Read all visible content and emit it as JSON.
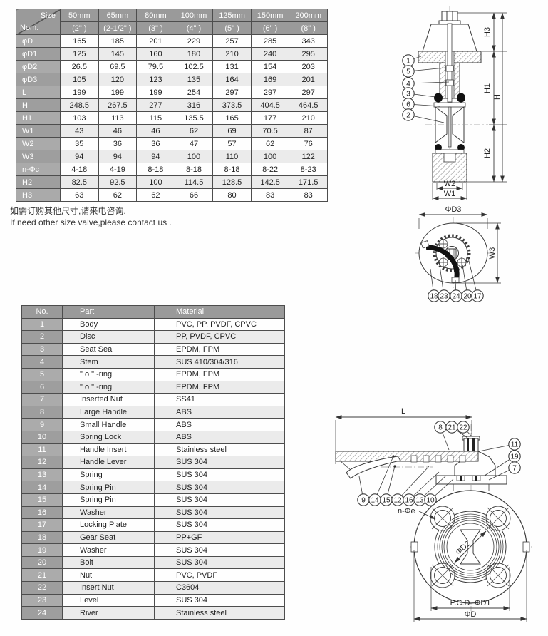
{
  "note": {
    "cn": "如需订购其他尺寸,请来电咨询.",
    "en": "If need other size valve,please contact us ."
  },
  "dim_table": {
    "corner_top": "Size",
    "corner_bottom": "Nom.",
    "columns": [
      {
        "size": "50mm",
        "inch": "(2\" )"
      },
      {
        "size": "65mm",
        "inch": "(2-1/2\" )"
      },
      {
        "size": "80mm",
        "inch": "(3\" )"
      },
      {
        "size": "100mm",
        "inch": "(4\" )"
      },
      {
        "size": "125mm",
        "inch": "(5\" )"
      },
      {
        "size": "150mm",
        "inch": "(6\" )"
      },
      {
        "size": "200mm",
        "inch": "(8\" )"
      }
    ],
    "rows": [
      {
        "label": "φD",
        "values": [
          "165",
          "185",
          "201",
          "229",
          "257",
          "285",
          "343"
        ]
      },
      {
        "label": "φD1",
        "values": [
          "125",
          "145",
          "160",
          "180",
          "210",
          "240",
          "295"
        ]
      },
      {
        "label": "φD2",
        "values": [
          "26.5",
          "69.5",
          "79.5",
          "102.5",
          "131",
          "154",
          "203"
        ]
      },
      {
        "label": "φD3",
        "values": [
          "105",
          "120",
          "123",
          "135",
          "164",
          "169",
          "201"
        ]
      },
      {
        "label": "L",
        "values": [
          "199",
          "199",
          "199",
          "254",
          "297",
          "297",
          "297"
        ]
      },
      {
        "label": "H",
        "values": [
          "248.5",
          "267.5",
          "277",
          "316",
          "373.5",
          "404.5",
          "464.5"
        ]
      },
      {
        "label": "H1",
        "values": [
          "103",
          "113",
          "115",
          "135.5",
          "165",
          "177",
          "210"
        ]
      },
      {
        "label": "W1",
        "values": [
          "43",
          "46",
          "46",
          "62",
          "69",
          "70.5",
          "87"
        ]
      },
      {
        "label": "W2",
        "values": [
          "35",
          "36",
          "36",
          "47",
          "57",
          "62",
          "76"
        ]
      },
      {
        "label": "W3",
        "values": [
          "94",
          "94",
          "94",
          "100",
          "110",
          "100",
          "122"
        ]
      },
      {
        "label": "n-Φc",
        "values": [
          "4-18",
          "4-19",
          "8-18",
          "8-18",
          "8-18",
          "8-22",
          "8-23"
        ]
      },
      {
        "label": "H2",
        "values": [
          "82.5",
          "92.5",
          "100",
          "114.5",
          "128.5",
          "142.5",
          "171.5"
        ]
      },
      {
        "label": "H3",
        "values": [
          "63",
          "62",
          "62",
          "66",
          "80",
          "83",
          "83"
        ]
      }
    ]
  },
  "parts_table": {
    "headers": [
      "No.",
      "Part",
      "Material"
    ],
    "rows": [
      {
        "no": "1",
        "part": "Body",
        "material": "PVC, PP, PVDF, CPVC"
      },
      {
        "no": "2",
        "part": "Disc",
        "material": "PP, PVDF, CPVC"
      },
      {
        "no": "3",
        "part": "Seat Seal",
        "material": "EPDM, FPM"
      },
      {
        "no": "4",
        "part": "Stem",
        "material": "SUS 410/304/316"
      },
      {
        "no": "5",
        "part": "\" o \" -ring",
        "material": "EPDM, FPM"
      },
      {
        "no": "6",
        "part": "\" o \" -ring",
        "material": "EPDM, FPM"
      },
      {
        "no": "7",
        "part": "Inserted Nut",
        "material": "SS41"
      },
      {
        "no": "8",
        "part": "Large Handle",
        "material": "ABS"
      },
      {
        "no": "9",
        "part": "Small Handle",
        "material": "ABS"
      },
      {
        "no": "10",
        "part": "Spring Lock",
        "material": "ABS"
      },
      {
        "no": "11",
        "part": "Handle Insert",
        "material": "Stainless steel"
      },
      {
        "no": "12",
        "part": "Handle Lever",
        "material": "SUS 304"
      },
      {
        "no": "13",
        "part": "Spring",
        "material": "SUS 304"
      },
      {
        "no": "14",
        "part": "Spring Pin",
        "material": "SUS 304"
      },
      {
        "no": "15",
        "part": "Spring Pin",
        "material": "SUS 304"
      },
      {
        "no": "16",
        "part": "Washer",
        "material": "SUS 304"
      },
      {
        "no": "17",
        "part": "Locking Plate",
        "material": "SUS 304"
      },
      {
        "no": "18",
        "part": "Gear Seat",
        "material": "PP+GF"
      },
      {
        "no": "19",
        "part": "Washer",
        "material": "SUS 304"
      },
      {
        "no": "20",
        "part": "Bolt",
        "material": "SUS 304"
      },
      {
        "no": "21",
        "part": "Nut",
        "material": "PVC, PVDF"
      },
      {
        "no": "22",
        "part": "Insert Nut",
        "material": "C3604"
      },
      {
        "no": "23",
        "part": "Level",
        "material": "SUS 304"
      },
      {
        "no": "24",
        "part": "River",
        "material": "Stainless steel"
      }
    ]
  },
  "diagram_top": {
    "balloons": [
      "1",
      "5",
      "4",
      "3",
      "6",
      "2"
    ],
    "dim_h3": "H3",
    "dim_h1": "H1",
    "dim_h": "H",
    "dim_h2": "H2",
    "dim_w2": "W2",
    "dim_w1": "W1"
  },
  "diagram_mid": {
    "dim_d3": "ΦD3",
    "dim_w3": "W3",
    "balloons": [
      "18",
      "23",
      "24",
      "20",
      "17"
    ]
  },
  "diagram_bottom": {
    "dim_l": "L",
    "balloons_top": [
      "8",
      "21",
      "22"
    ],
    "balloons_right": [
      "11",
      "19",
      "7"
    ],
    "balloons_row": [
      "9",
      "14",
      "15",
      "12",
      "16",
      "13",
      "10"
    ],
    "hole_label": "n-Φe",
    "dim_d2": "ΦD2",
    "dim_pcd": "P.C.D. ΦD1",
    "dim_d": "ΦD"
  },
  "colors": {
    "header_gray": "#9a9a9a",
    "label_gray": "#ababab",
    "alt_row_gray": "#ebebeb",
    "line_dark": "#333333"
  }
}
